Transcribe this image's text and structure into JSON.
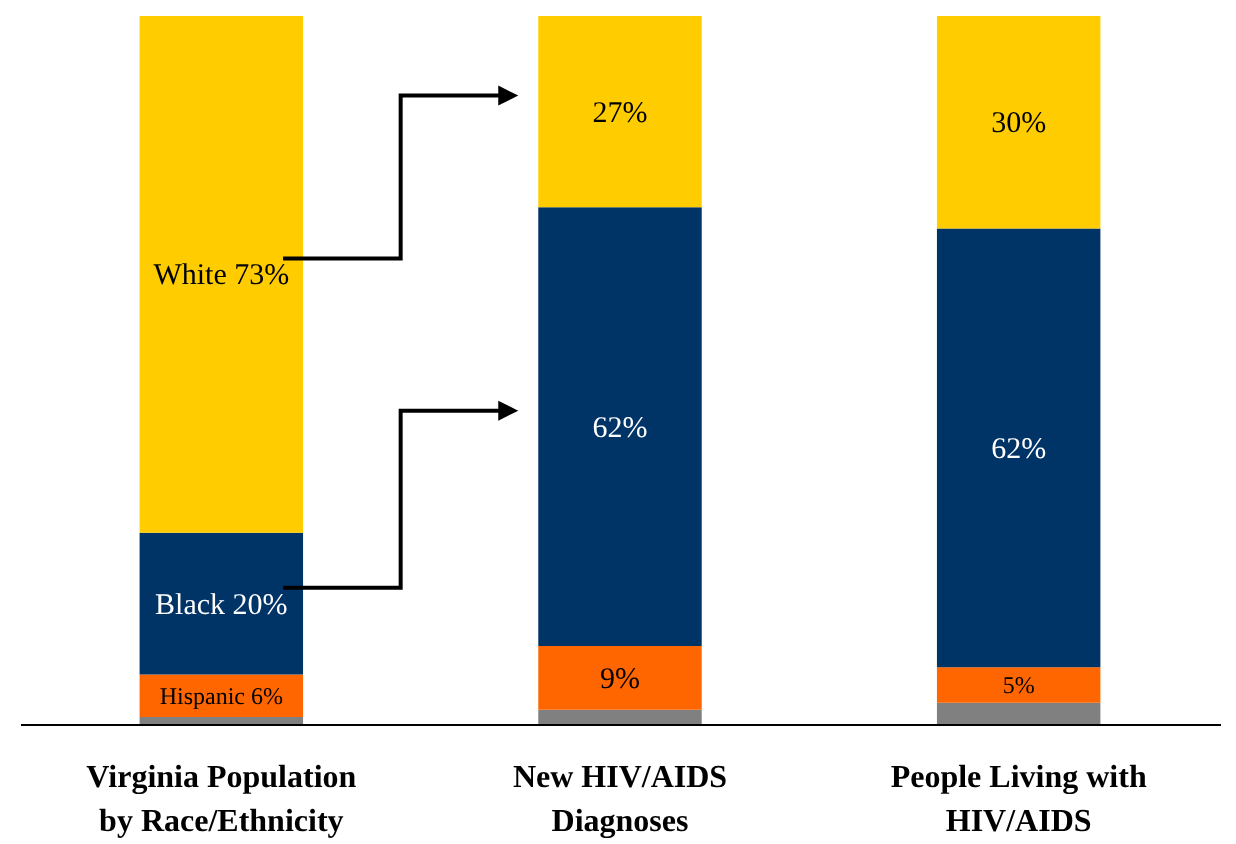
{
  "chart_data": {
    "type": "bar",
    "stacked": true,
    "ylim": [
      0,
      100
    ],
    "tick_labels": "x",
    "categories": [
      "Virginia Population by Race/Ethnicity",
      "New HIV/AIDS Diagnoses",
      "People Living with HIV/AIDS"
    ],
    "series": [
      {
        "color": "#808080",
        "values": [
          1,
          2,
          3
        ],
        "value_labels": [
          null,
          null,
          null
        ]
      },
      {
        "color": "#ff6600",
        "values": [
          6,
          9,
          5
        ],
        "value_labels": [
          "Hispanic 6%",
          "9%",
          "5%"
        ]
      },
      {
        "color": "#003366",
        "values": [
          20,
          62,
          62
        ],
        "value_labels": [
          "Black 20%",
          "62%",
          "62%"
        ]
      },
      {
        "color": "#ffcc00",
        "values": [
          73,
          27,
          30
        ],
        "value_labels": [
          "White 73%",
          "27%",
          "30%"
        ]
      }
    ]
  }
}
